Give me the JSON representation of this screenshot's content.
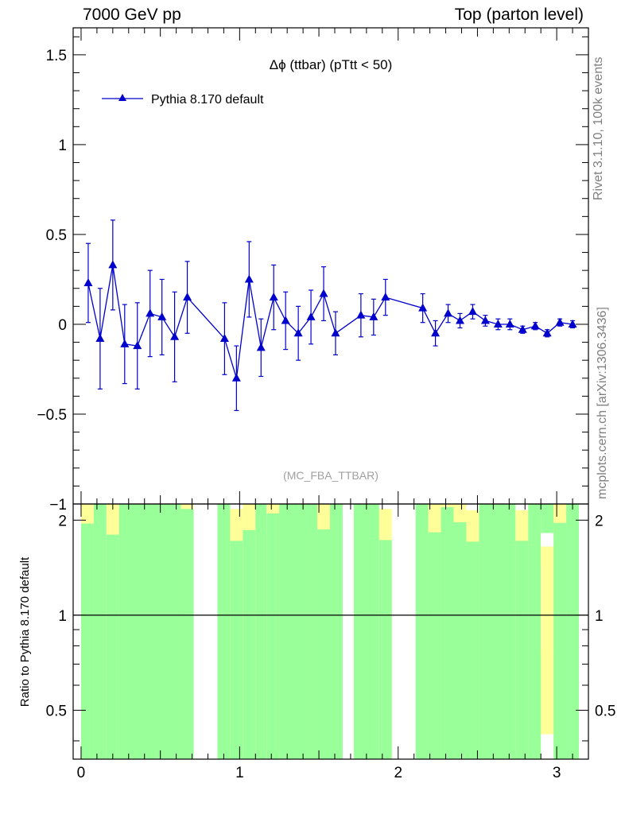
{
  "header": {
    "left": "7000 GeV pp",
    "right": "Top (parton level)"
  },
  "side_labels": {
    "rivet": "Rivet 3.1.10,  100k events",
    "mcplots": "mcplots.cern.ch [arXiv:1306.3436]"
  },
  "colors": {
    "series": "#0000cc",
    "band_green": "#99ff99",
    "band_yellow": "#ffff99",
    "watermark": "#a0a0a0"
  },
  "chart_data": [
    {
      "type": "line",
      "title": "Δϕ (ttbar) (pTtt < 50)",
      "watermark": "(MC_FBA_TTBAR)",
      "legend_position": "top-left",
      "xlim": [
        -0.05,
        3.2
      ],
      "ylim": [
        -1.0,
        1.65
      ],
      "y_ticks": [
        -1,
        -0.5,
        0,
        0.5,
        1,
        1.5
      ],
      "y_tick_labels": [
        "−1",
        "−0.5",
        "0",
        "0.5",
        "1",
        "1.5"
      ],
      "series": [
        {
          "name": "Pythia 8.170 default",
          "marker": "triangle",
          "x": [
            0.045,
            0.12,
            0.2,
            0.275,
            0.355,
            0.435,
            0.51,
            0.59,
            0.67,
            0.905,
            0.98,
            1.06,
            1.135,
            1.215,
            1.29,
            1.37,
            1.45,
            1.53,
            1.605,
            1.765,
            1.845,
            1.92,
            2.155,
            2.235,
            2.315,
            2.39,
            2.47,
            2.55,
            2.63,
            2.705,
            2.785,
            2.865,
            2.94,
            3.02,
            3.1
          ],
          "y": [
            0.23,
            -0.08,
            0.33,
            -0.11,
            -0.12,
            0.06,
            0.04,
            -0.07,
            0.15,
            -0.08,
            -0.3,
            0.25,
            -0.13,
            0.15,
            0.02,
            -0.05,
            0.04,
            0.17,
            -0.05,
            0.05,
            0.04,
            0.15,
            0.09,
            -0.05,
            0.06,
            0.02,
            0.07,
            0.02,
            0.0,
            0.0,
            -0.03,
            -0.01,
            -0.05,
            0.01,
            0.0
          ],
          "yerr": [
            0.22,
            0.28,
            0.25,
            0.22,
            0.24,
            0.24,
            0.21,
            0.25,
            0.2,
            0.2,
            0.18,
            0.21,
            0.16,
            0.18,
            0.16,
            0.15,
            0.15,
            0.15,
            0.12,
            0.12,
            0.1,
            0.1,
            0.08,
            0.07,
            0.05,
            0.04,
            0.04,
            0.03,
            0.03,
            0.03,
            0.02,
            0.02,
            0.02,
            0.02,
            0.02
          ]
        }
      ]
    },
    {
      "type": "area",
      "ylabel": "Ratio to Pythia 8.170 default",
      "xlim": [
        -0.05,
        3.2
      ],
      "ylim": [
        0.35,
        2.25
      ],
      "x_ticks": [
        0,
        1,
        2,
        3
      ],
      "y_ticks": [
        0.5,
        1,
        2
      ],
      "reference_line": 1,
      "bins": [
        {
          "x0": 0.0,
          "x1": 0.08,
          "yellow": [
            0.35,
            2.25
          ],
          "green": [
            0.35,
            1.95
          ]
        },
        {
          "x0": 0.08,
          "x1": 0.16,
          "yellow": null,
          "green": [
            0.35,
            2.25
          ]
        },
        {
          "x0": 0.16,
          "x1": 0.24,
          "yellow": [
            0.35,
            2.25
          ],
          "green": [
            0.35,
            1.8
          ]
        },
        {
          "x0": 0.24,
          "x1": 0.63,
          "yellow": null,
          "green": [
            0.35,
            2.25
          ]
        },
        {
          "x0": 0.63,
          "x1": 0.71,
          "yellow": [
            0.35,
            2.25
          ],
          "green": [
            0.35,
            2.17
          ]
        },
        {
          "x0": 0.86,
          "x1": 0.94,
          "yellow": null,
          "green": [
            0.35,
            2.25
          ]
        },
        {
          "x0": 0.94,
          "x1": 1.02,
          "yellow": [
            0.35,
            2.17
          ],
          "green": [
            0.35,
            1.72
          ]
        },
        {
          "x0": 1.02,
          "x1": 1.1,
          "yellow": [
            0.35,
            2.25
          ],
          "green": [
            0.35,
            1.86
          ]
        },
        {
          "x0": 1.1,
          "x1": 1.17,
          "yellow": null,
          "green": [
            0.35,
            2.25
          ]
        },
        {
          "x0": 1.17,
          "x1": 1.25,
          "yellow": [
            0.35,
            2.25
          ],
          "green": [
            0.35,
            2.1
          ]
        },
        {
          "x0": 1.25,
          "x1": 1.49,
          "yellow": null,
          "green": [
            0.35,
            2.25
          ]
        },
        {
          "x0": 1.49,
          "x1": 1.57,
          "yellow": [
            0.35,
            2.25
          ],
          "green": [
            0.35,
            1.87
          ]
        },
        {
          "x0": 1.57,
          "x1": 1.65,
          "yellow": null,
          "green": [
            0.35,
            2.25
          ]
        },
        {
          "x0": 1.72,
          "x1": 1.88,
          "yellow": null,
          "green": [
            0.35,
            2.25
          ]
        },
        {
          "x0": 1.88,
          "x1": 1.96,
          "yellow": [
            0.35,
            2.17
          ],
          "green": [
            0.35,
            1.73
          ]
        },
        {
          "x0": 2.11,
          "x1": 2.19,
          "yellow": null,
          "green": [
            0.35,
            2.25
          ]
        },
        {
          "x0": 2.19,
          "x1": 2.27,
          "yellow": [
            0.35,
            2.25
          ],
          "green": [
            0.35,
            1.83
          ]
        },
        {
          "x0": 2.27,
          "x1": 2.35,
          "yellow": [
            0.35,
            2.25
          ],
          "green": [
            0.35,
            2.2
          ]
        },
        {
          "x0": 2.35,
          "x1": 2.43,
          "yellow": [
            0.35,
            2.25
          ],
          "green": [
            0.35,
            1.97
          ]
        },
        {
          "x0": 2.43,
          "x1": 2.51,
          "yellow": [
            0.35,
            2.15
          ],
          "green": [
            0.35,
            1.71
          ]
        },
        {
          "x0": 2.51,
          "x1": 2.74,
          "yellow": null,
          "green": [
            0.35,
            2.25
          ]
        },
        {
          "x0": 2.74,
          "x1": 2.82,
          "yellow": [
            0.35,
            2.15
          ],
          "green": [
            0.35,
            1.72
          ]
        },
        {
          "x0": 2.82,
          "x1": 2.9,
          "yellow": null,
          "green": [
            0.35,
            2.25
          ]
        },
        {
          "x0": 2.9,
          "x1": 2.98,
          "yellow": [
            0.42,
            2.25
          ],
          "green": [
            0.42,
            0.77
          ],
          "green2": [
            1.65,
            2.25
          ],
          "yellow_top": [
            1.48,
            1.65
          ]
        },
        {
          "x0": 2.98,
          "x1": 3.06,
          "yellow": [
            0.35,
            2.25
          ],
          "green": [
            0.35,
            1.96
          ]
        },
        {
          "x0": 3.06,
          "x1": 3.14,
          "yellow": null,
          "green": [
            0.35,
            2.25
          ]
        }
      ]
    }
  ]
}
